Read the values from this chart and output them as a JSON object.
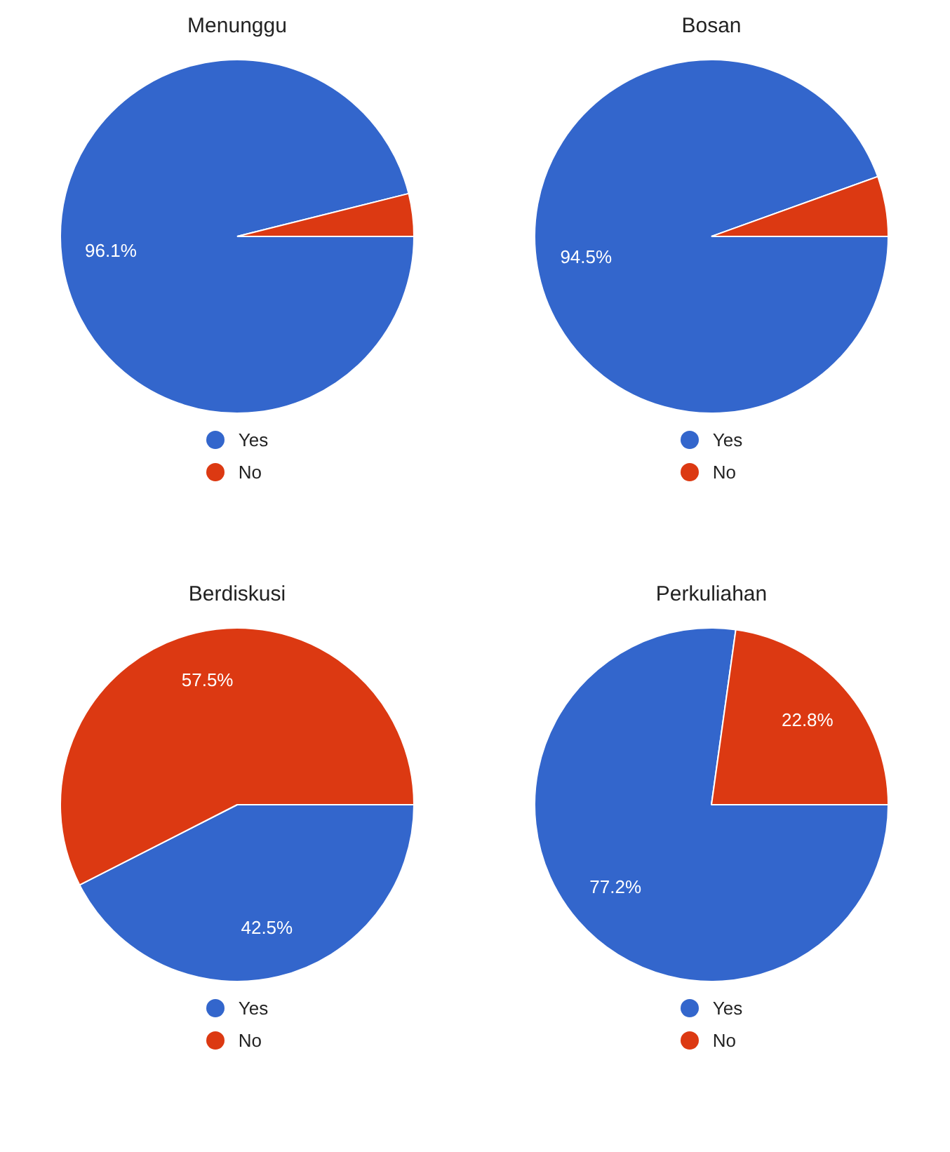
{
  "chart_data": [
    {
      "type": "pie",
      "title": "Menunggu",
      "categories": [
        "Yes",
        "No"
      ],
      "values": [
        96.1,
        3.9
      ],
      "colors": [
        "#3366cc",
        "#dc3912"
      ],
      "value_labels": [
        "96.1%",
        null
      ],
      "legend": "bottom"
    },
    {
      "type": "pie",
      "title": "Bosan",
      "categories": [
        "Yes",
        "No"
      ],
      "values": [
        94.5,
        5.5
      ],
      "colors": [
        "#3366cc",
        "#dc3912"
      ],
      "value_labels": [
        "94.5%",
        null
      ],
      "legend": "bottom"
    },
    {
      "type": "pie",
      "title": "Berdiskusi",
      "categories": [
        "Yes",
        "No"
      ],
      "values": [
        42.5,
        57.5
      ],
      "colors": [
        "#3366cc",
        "#dc3912"
      ],
      "value_labels": [
        "42.5%",
        "57.5%"
      ],
      "legend": "bottom"
    },
    {
      "type": "pie",
      "title": "Perkuliahan",
      "categories": [
        "Yes",
        "No"
      ],
      "values": [
        77.2,
        22.8
      ],
      "colors": [
        "#3366cc",
        "#dc3912"
      ],
      "value_labels": [
        "77.2%",
        "22.8%"
      ],
      "legend": "bottom"
    }
  ]
}
